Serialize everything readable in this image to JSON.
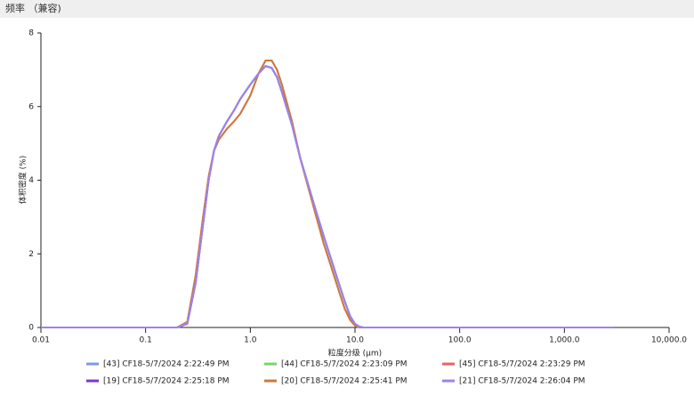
{
  "chart_data": {
    "type": "line",
    "title": "频率 （兼容)",
    "x_label": "粒度分级 (μm)",
    "y_label": "体积密度 (%)",
    "x_log": true,
    "xlim": [
      0.01,
      10000
    ],
    "xticks": [
      0.01,
      0.1,
      {
        "value": 1,
        "label": "1.0"
      },
      {
        "value": 10,
        "label": "10.0"
      },
      {
        "value": 100,
        "label": "100.0"
      },
      {
        "value": 1000,
        "label": "1,000.0"
      },
      {
        "value": 10000,
        "label": "10,000.0"
      }
    ],
    "ylim": [
      0,
      8
    ],
    "yticks": [
      0,
      2,
      4,
      6,
      8
    ],
    "x": [
      0.01,
      0.1,
      0.2,
      0.25,
      0.3,
      0.35,
      0.4,
      0.45,
      0.5,
      0.6,
      0.7,
      0.8,
      1,
      1.2,
      1.4,
      1.6,
      1.8,
      2,
      2.5,
      3,
      4,
      5,
      6,
      7,
      8,
      9,
      10,
      11,
      12,
      100,
      1000,
      3000
    ],
    "series": [
      {
        "name": "[43] CF18-5/7/2024 2:22:49 PM",
        "color": "#7a9ae8",
        "values": [
          0,
          0,
          0,
          0.1,
          1.2,
          2.7,
          4.0,
          4.8,
          5.2,
          5.6,
          5.9,
          6.2,
          6.6,
          6.9,
          7.1,
          7.05,
          6.8,
          6.4,
          5.5,
          4.6,
          3.4,
          2.5,
          1.8,
          1.2,
          0.7,
          0.3,
          0.1,
          0.02,
          0,
          0,
          0,
          0
        ]
      },
      {
        "name": "[44] CF18-5/7/2024 2:23:09 PM",
        "color": "#77d36f",
        "values": [
          0,
          0,
          0,
          0.1,
          1.2,
          2.7,
          4.0,
          4.8,
          5.2,
          5.6,
          5.9,
          6.2,
          6.6,
          6.9,
          7.1,
          7.05,
          6.8,
          6.4,
          5.5,
          4.6,
          3.4,
          2.5,
          1.8,
          1.2,
          0.7,
          0.3,
          0.1,
          0.02,
          0,
          0,
          0,
          0
        ]
      },
      {
        "name": "[45] CF18-5/7/2024 2:23:29 PM",
        "color": "#e8655d",
        "values": [
          0,
          0,
          0,
          0.15,
          1.4,
          2.9,
          4.1,
          4.8,
          5.1,
          5.4,
          5.6,
          5.8,
          6.3,
          6.9,
          7.25,
          7.25,
          7.0,
          6.6,
          5.6,
          4.6,
          3.3,
          2.3,
          1.6,
          1.0,
          0.5,
          0.2,
          0.05,
          0,
          0,
          0,
          0,
          0
        ]
      },
      {
        "name": "[19] CF18-5/7/2024 2:25:18 PM",
        "color": "#7b3ac6",
        "values": [
          0,
          0,
          0,
          0.1,
          1.2,
          2.7,
          4.0,
          4.8,
          5.2,
          5.6,
          5.9,
          6.2,
          6.6,
          6.9,
          7.1,
          7.05,
          6.8,
          6.4,
          5.5,
          4.6,
          3.4,
          2.5,
          1.8,
          1.2,
          0.7,
          0.3,
          0.1,
          0.02,
          0,
          0,
          0,
          0
        ]
      },
      {
        "name": "[20] CF18-5/7/2024 2:25:41 PM",
        "color": "#c97b3d",
        "values": [
          0,
          0,
          0,
          0.15,
          1.4,
          2.9,
          4.1,
          4.8,
          5.1,
          5.4,
          5.6,
          5.8,
          6.3,
          6.9,
          7.25,
          7.25,
          7.0,
          6.6,
          5.6,
          4.6,
          3.3,
          2.3,
          1.6,
          1.0,
          0.5,
          0.2,
          0.05,
          0,
          0,
          0,
          0,
          0
        ]
      },
      {
        "name": "[21] CF18-5/7/2024 2:26:04 PM",
        "color": "#9d82ec",
        "values": [
          0,
          0,
          0,
          0.1,
          1.2,
          2.7,
          4.0,
          4.8,
          5.2,
          5.6,
          5.9,
          6.2,
          6.6,
          6.9,
          7.1,
          7.05,
          6.8,
          6.4,
          5.5,
          4.6,
          3.4,
          2.5,
          1.8,
          1.2,
          0.7,
          0.3,
          0.1,
          0.02,
          0,
          0,
          0,
          0
        ]
      }
    ]
  }
}
